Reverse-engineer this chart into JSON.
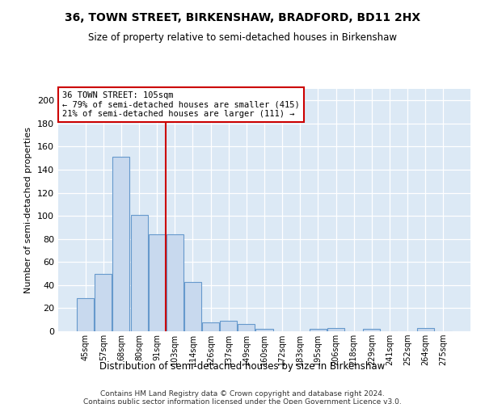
{
  "title": "36, TOWN STREET, BIRKENSHAW, BRADFORD, BD11 2HX",
  "subtitle": "Size of property relative to semi-detached houses in Birkenshaw",
  "xlabel": "Distribution of semi-detached houses by size in Birkenshaw",
  "ylabel": "Number of semi-detached properties",
  "categories": [
    "45sqm",
    "57sqm",
    "68sqm",
    "80sqm",
    "91sqm",
    "103sqm",
    "114sqm",
    "126sqm",
    "137sqm",
    "149sqm",
    "160sqm",
    "172sqm",
    "183sqm",
    "195sqm",
    "206sqm",
    "218sqm",
    "229sqm",
    "241sqm",
    "252sqm",
    "264sqm",
    "275sqm"
  ],
  "values": [
    29,
    50,
    151,
    101,
    84,
    84,
    43,
    8,
    9,
    6,
    2,
    0,
    0,
    2,
    3,
    0,
    2,
    0,
    0,
    3,
    0
  ],
  "bar_color": "#c8d9ee",
  "bar_edge_color": "#6699cc",
  "vline_x": 5,
  "vline_color": "#cc0000",
  "annotation_title": "36 TOWN STREET: 105sqm",
  "annotation_line1": "← 79% of semi-detached houses are smaller (415)",
  "annotation_line2": "21% of semi-detached houses are larger (111) →",
  "annotation_box_color": "#ffffff",
  "annotation_box_edge": "#cc0000",
  "ylim": [
    0,
    210
  ],
  "yticks": [
    0,
    20,
    40,
    60,
    80,
    100,
    120,
    140,
    160,
    180,
    200
  ],
  "background_color": "#dce9f5",
  "fig_background": "#ffffff",
  "grid_color": "#ffffff",
  "footer_line1": "Contains HM Land Registry data © Crown copyright and database right 2024.",
  "footer_line2": "Contains public sector information licensed under the Open Government Licence v3.0."
}
